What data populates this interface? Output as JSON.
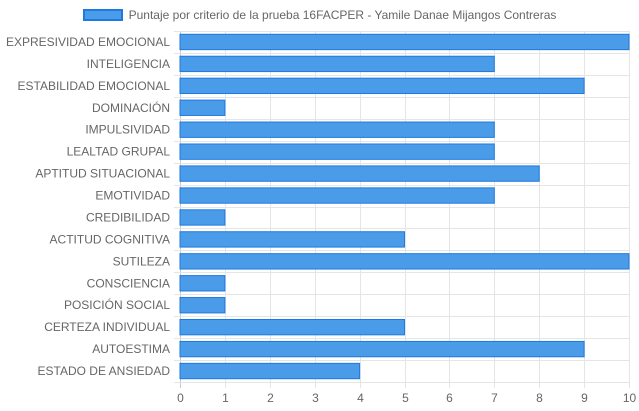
{
  "chart_data": {
    "type": "bar",
    "orientation": "horizontal",
    "legend": {
      "position": "top",
      "entries": [
        "Puntaje por criterio de la prueba 16FACPER - Yamile Danae Mijangos Contreras"
      ]
    },
    "categories": [
      "EXPRESIVIDAD EMOCIONAL",
      "INTELIGENCIA",
      "ESTABILIDAD EMOCIONAL",
      "DOMINACIÓN",
      "IMPULSIVIDAD",
      "LEALTAD GRUPAL",
      "APTITUD SITUACIONAL",
      "EMOTIVIDAD",
      "CREDIBILIDAD",
      "ACTITUD COGNITIVA",
      "SUTILEZA",
      "CONSCIENCIA",
      "POSICIÓN SOCIAL",
      "CERTEZA INDIVIDUAL",
      "AUTOESTIMA",
      "ESTADO DE ANSIEDAD"
    ],
    "series": [
      {
        "name": "Puntaje por criterio de la prueba 16FACPER - Yamile Danae Mijangos Contreras",
        "values": [
          10,
          7,
          9,
          1,
          7,
          7,
          8,
          7,
          1,
          5,
          10,
          1,
          1,
          5,
          9,
          4
        ]
      }
    ],
    "xlim": [
      0,
      10
    ],
    "x_ticks": [
      "0",
      "1",
      "2",
      "3",
      "4",
      "5",
      "6",
      "7",
      "8",
      "9",
      "10"
    ],
    "grid": true,
    "colors": {
      "bar_fill": "#4a9be8",
      "bar_border": "#1e7ae0",
      "grid": "#e5e5e5",
      "text": "#666666"
    }
  }
}
